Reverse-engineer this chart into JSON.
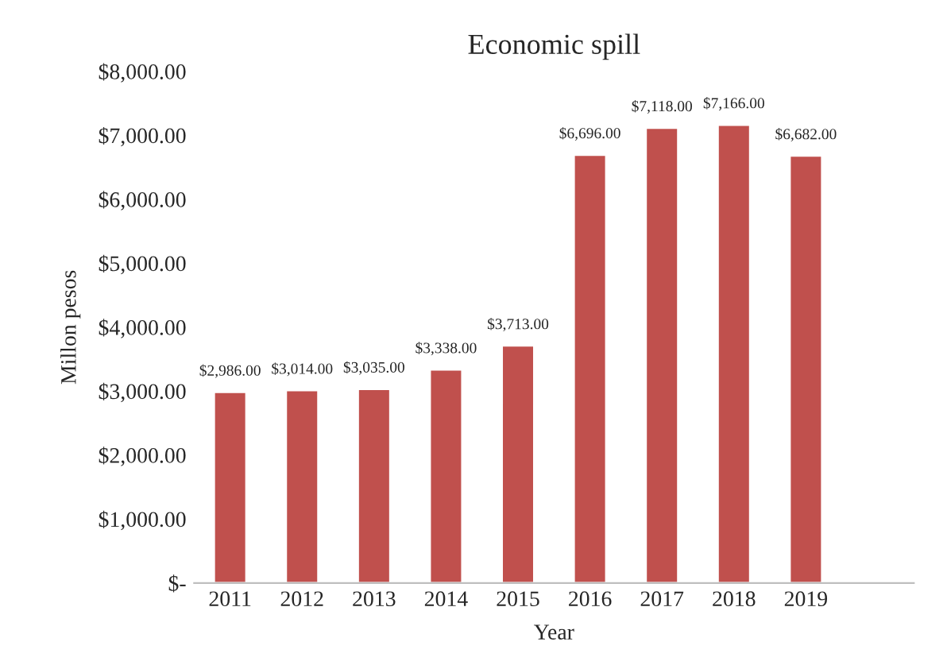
{
  "chart_data": {
    "type": "bar",
    "title": "Economic spill",
    "xlabel": "Year",
    "ylabel": "Millon pesos",
    "categories": [
      "2011",
      "2012",
      "2013",
      "2014",
      "2015",
      "2016",
      "2017",
      "2018",
      "2019",
      null
    ],
    "values": [
      2986,
      3014,
      3035,
      3338,
      3713,
      6696,
      7118,
      7166,
      6682,
      null
    ],
    "value_labels": [
      "$2,986.00",
      "$3,014.00",
      "$3,035.00",
      "$3,338.00",
      "$3,713.00",
      "$6,696.00",
      "$7,118.00",
      "$7,166.00",
      "$6,682.00",
      null
    ],
    "color": "#c0504d",
    "ylim": [
      0,
      8000
    ],
    "yticks": [
      {
        "value": 0,
        "label": "$-"
      },
      {
        "value": 1000,
        "label": "$1,000.00"
      },
      {
        "value": 2000,
        "label": "$2,000.00"
      },
      {
        "value": 3000,
        "label": "$3,000.00"
      },
      {
        "value": 4000,
        "label": "$4,000.00"
      },
      {
        "value": 5000,
        "label": "$5,000.00"
      },
      {
        "value": 6000,
        "label": "$6,000.00"
      },
      {
        "value": 7000,
        "label": "$7,000.00"
      },
      {
        "value": 8000,
        "label": "$8,000.00"
      }
    ],
    "grid": false,
    "legend": false
  }
}
